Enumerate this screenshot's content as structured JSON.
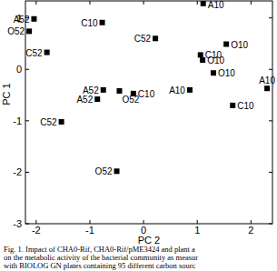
{
  "chart_data": {
    "type": "scatter",
    "x_label": "PC 2",
    "y_label": "PC 1",
    "xlim": [
      -2.2,
      2.4
    ],
    "ylim": [
      -3,
      1.33
    ],
    "xticks": [
      -2,
      -1,
      0,
      1,
      2
    ],
    "yticks": [
      -3,
      -2,
      -1,
      0,
      1
    ],
    "grid": false,
    "series": [
      {
        "color": "#000000",
        "marker": "square",
        "labels": [
          "A10",
          "A52",
          "O52",
          "C10",
          "C52",
          "C52",
          "O10",
          "C10",
          "O10",
          "O10",
          "A52",
          "O52",
          "A52",
          "C10",
          "A10",
          "C10",
          "A10",
          "C52",
          "O52"
        ],
        "x": [
          1.11,
          -2.04,
          -2.13,
          -0.77,
          0.22,
          -1.8,
          1.54,
          1.06,
          1.1,
          1.3,
          -0.75,
          -0.45,
          -0.86,
          -0.19,
          0.86,
          1.66,
          2.3,
          -1.53,
          -0.5
        ],
        "values": [
          1.28,
          0.98,
          0.74,
          0.91,
          0.6,
          0.33,
          0.49,
          0.28,
          0.18,
          -0.07,
          -0.4,
          -0.42,
          -0.58,
          -0.47,
          -0.4,
          -0.7,
          -0.37,
          -1.02,
          -1.98
        ]
      }
    ],
    "caption": [
      "Fig. 1. Impact of CHA0-Rif, CHA0-Rif/pME3424 and plant a",
      "on the metabolic activity of the bacterial community as measur",
      "with BIOLOG GN plates containing 95 different carbon sourc"
    ]
  }
}
